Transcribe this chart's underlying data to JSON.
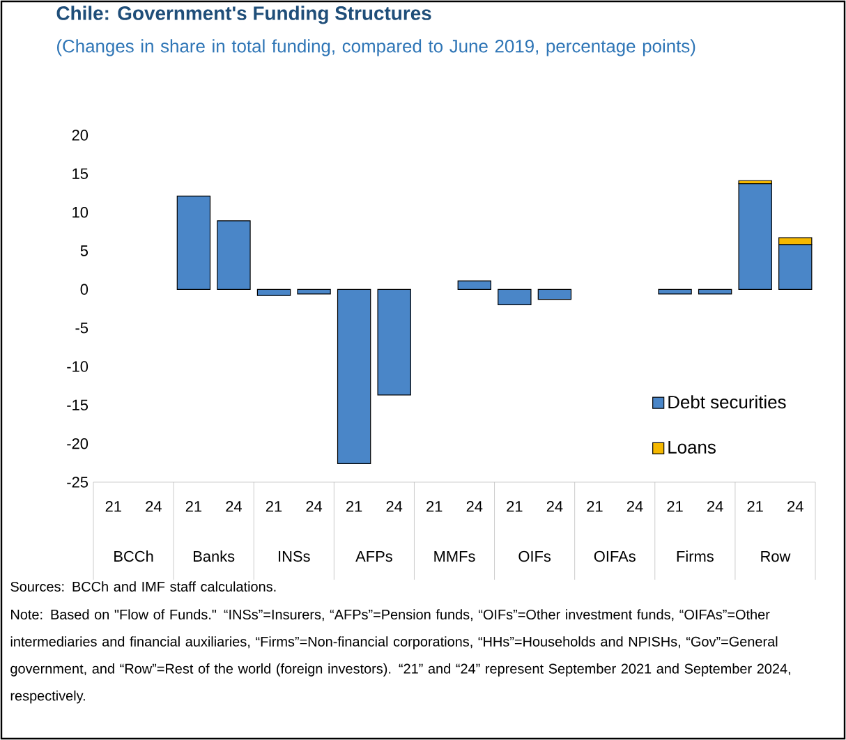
{
  "chart_data": {
    "type": "bar",
    "stacked": true,
    "title": "Chile: Government's Funding Structures",
    "subtitle": "(Changes in share in total funding, compared to June 2019, percentage points)",
    "categories": [
      "21",
      "24",
      "21",
      "24",
      "21",
      "24",
      "21",
      "24",
      "21",
      "24",
      "21",
      "24",
      "21",
      "24",
      "21",
      "24",
      "21",
      "24"
    ],
    "series": [
      {
        "name": "Debt securities",
        "color": "#4a86c8",
        "values": [
          0,
          0,
          12.1,
          8.9,
          -0.8,
          -0.6,
          -22.6,
          -13.7,
          0,
          1.1,
          -2.0,
          -1.3,
          0,
          0,
          -0.6,
          -0.6,
          13.7,
          5.8
        ]
      },
      {
        "name": "Loans",
        "color": "#f5b800",
        "values": [
          0,
          0,
          0,
          0,
          0,
          0,
          0,
          0,
          0,
          0,
          0,
          0,
          0,
          0,
          0,
          0,
          0.4,
          0.9
        ]
      }
    ],
    "ylim": [
      -25,
      20
    ],
    "yticks": [
      -25,
      -20,
      -15,
      -10,
      -5,
      0,
      5,
      10,
      15,
      20
    ],
    "grid": false,
    "legend": "bottom right",
    "annotations": [
      "BCCh",
      "Banks",
      "INSs",
      "AFPs",
      "MMFs",
      "OIFs",
      "OIFAs",
      "Firms",
      "Row",
      "Sources: BCCh and IMF staff calculations.",
      "Note: Based on \"Flow of Funds.\" “INSs”=Insurers, “AFPs”=Pension funds, “OIFs”=Other investment funds, “OIFAs”=Other intermediaries and financial auxiliaries, “Firms”=Non-financial corporations, “HHs”=Households and NPISHs, “Gov”=General government, and “Row”=Rest of the world (foreign investors). “21” and “24” represent September 2021 and September 2024, respectively."
    ]
  }
}
